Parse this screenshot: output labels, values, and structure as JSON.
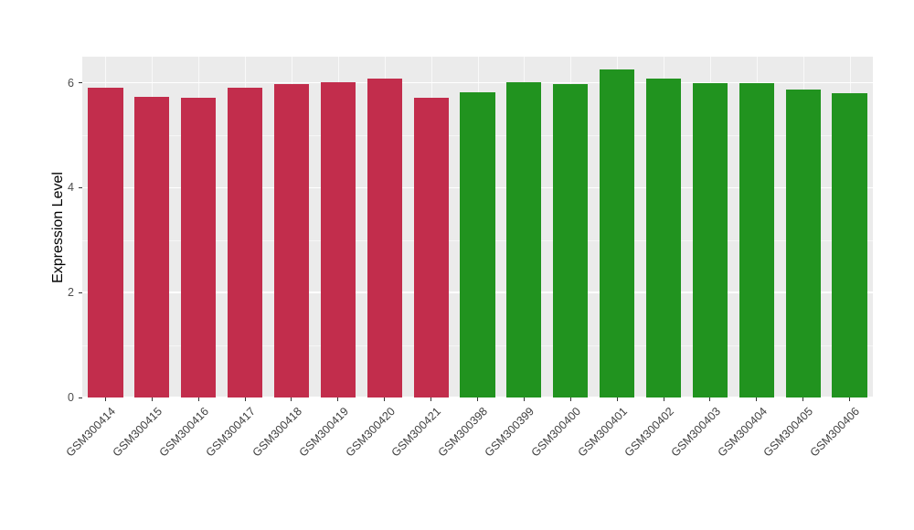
{
  "chart_data": {
    "type": "bar",
    "title": "",
    "xlabel": "",
    "ylabel": "Expression Level",
    "categories": [
      "GSM300414",
      "GSM300415",
      "GSM300416",
      "GSM300417",
      "GSM300418",
      "GSM300419",
      "GSM300420",
      "GSM300421",
      "GSM300398",
      "GSM300399",
      "GSM300400",
      "GSM300401",
      "GSM300402",
      "GSM300403",
      "GSM300404",
      "GSM300405",
      "GSM300406"
    ],
    "values": [
      5.9,
      5.73,
      5.71,
      5.9,
      5.98,
      6.01,
      6.08,
      5.71,
      5.82,
      6.02,
      5.97,
      6.25,
      6.08,
      6.0,
      5.99,
      5.88,
      5.81
    ],
    "bar_colors": [
      "#C22D4C",
      "#C22D4C",
      "#C22D4C",
      "#C22D4C",
      "#C22D4C",
      "#C22D4C",
      "#C22D4C",
      "#C22D4C",
      "#21931F",
      "#21931F",
      "#21931F",
      "#21931F",
      "#21931F",
      "#21931F",
      "#21931F",
      "#21931F",
      "#21931F"
    ],
    "group_colors": {
      "left_group": "#C22D4C",
      "right_group": "#21931F"
    },
    "yticks": [
      0,
      2,
      4,
      6
    ],
    "ylim": [
      0,
      6.5
    ],
    "grid": "on",
    "legend_position": "none",
    "panel_bg": "#EBEBEB",
    "grid_major_color": "#FFFFFF",
    "tick_color": "#333333",
    "tick_label_color": "#4D4D4D"
  }
}
